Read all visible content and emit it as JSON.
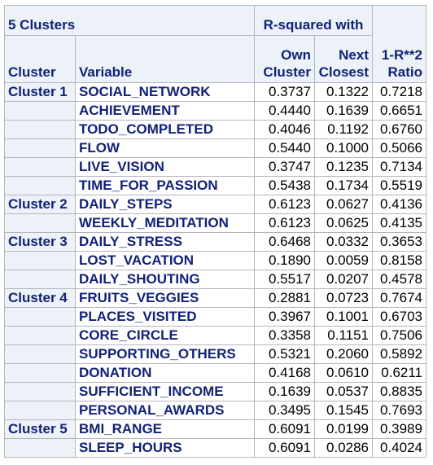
{
  "title": "5 Clusters",
  "group_header": "R-squared with",
  "columns": {
    "cluster": "Cluster",
    "variable": "Variable",
    "own_1": "Own",
    "own_2": "Cluster",
    "next_1": "Next",
    "next_2": "Closest",
    "ratio_1": "1-R**2",
    "ratio_2": "Ratio"
  },
  "rows": [
    {
      "cluster": "Cluster 1",
      "variable": "SOCIAL_NETWORK",
      "own": "0.3737",
      "next": "0.1322",
      "ratio": "0.7218"
    },
    {
      "cluster": "",
      "variable": "ACHIEVEMENT",
      "own": "0.4440",
      "next": "0.1639",
      "ratio": "0.6651"
    },
    {
      "cluster": "",
      "variable": "TODO_COMPLETED",
      "own": "0.4046",
      "next": "0.1192",
      "ratio": "0.6760"
    },
    {
      "cluster": "",
      "variable": "FLOW",
      "own": "0.5440",
      "next": "0.1000",
      "ratio": "0.5066"
    },
    {
      "cluster": "",
      "variable": "LIVE_VISION",
      "own": "0.3747",
      "next": "0.1235",
      "ratio": "0.7134"
    },
    {
      "cluster": "",
      "variable": "TIME_FOR_PASSION",
      "own": "0.5438",
      "next": "0.1734",
      "ratio": "0.5519"
    },
    {
      "cluster": "Cluster 2",
      "variable": "DAILY_STEPS",
      "own": "0.6123",
      "next": "0.0627",
      "ratio": "0.4136"
    },
    {
      "cluster": "",
      "variable": "WEEKLY_MEDITATION",
      "own": "0.6123",
      "next": "0.0625",
      "ratio": "0.4135"
    },
    {
      "cluster": "Cluster 3",
      "variable": "DAILY_STRESS",
      "own": "0.6468",
      "next": "0.0332",
      "ratio": "0.3653"
    },
    {
      "cluster": "",
      "variable": "LOST_VACATION",
      "own": "0.1890",
      "next": "0.0059",
      "ratio": "0.8158"
    },
    {
      "cluster": "",
      "variable": "DAILY_SHOUTING",
      "own": "0.5517",
      "next": "0.0207",
      "ratio": "0.4578"
    },
    {
      "cluster": "Cluster 4",
      "variable": "FRUITS_VEGGIES",
      "own": "0.2881",
      "next": "0.0723",
      "ratio": "0.7674"
    },
    {
      "cluster": "",
      "variable": "PLACES_VISITED",
      "own": "0.3967",
      "next": "0.1001",
      "ratio": "0.6703"
    },
    {
      "cluster": "",
      "variable": "CORE_CIRCLE",
      "own": "0.3358",
      "next": "0.1151",
      "ratio": "0.7506"
    },
    {
      "cluster": "",
      "variable": "SUPPORTING_OTHERS",
      "own": "0.5321",
      "next": "0.2060",
      "ratio": "0.5892"
    },
    {
      "cluster": "",
      "variable": "DONATION",
      "own": "0.4168",
      "next": "0.0610",
      "ratio": "0.6211"
    },
    {
      "cluster": "",
      "variable": "SUFFICIENT_INCOME",
      "own": "0.1639",
      "next": "0.0537",
      "ratio": "0.8835"
    },
    {
      "cluster": "",
      "variable": "PERSONAL_AWARDS",
      "own": "0.3495",
      "next": "0.1545",
      "ratio": "0.7693"
    },
    {
      "cluster": "Cluster 5",
      "variable": "BMI_RANGE",
      "own": "0.6091",
      "next": "0.0199",
      "ratio": "0.3989"
    },
    {
      "cluster": "",
      "variable": "SLEEP_HOURS",
      "own": "0.6091",
      "next": "0.0286",
      "ratio": "0.4024"
    }
  ]
}
